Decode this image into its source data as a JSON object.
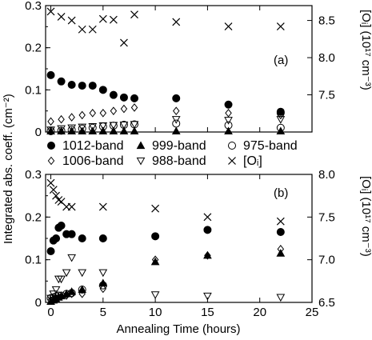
{
  "chart_data": [
    {
      "type": "scatter",
      "panel_label": "(a)",
      "ylabel_left": "Integrated abs. coeff. (cm⁻²)",
      "ylabel_right": "[Oᵢ] (10¹⁷ cm⁻³)",
      "ylim": [
        0,
        0.3
      ],
      "ylim_right": [
        7.0,
        8.7
      ],
      "yticks": [
        "0",
        "0.1",
        "0.2",
        "0.3"
      ],
      "yticks_right": [
        "7.5",
        "8.0",
        "8.5"
      ],
      "series": [
        {
          "name": "1012-band",
          "marker": "filled-circle",
          "axis": "left",
          "x": [
            0,
            1,
            2,
            3,
            4,
            5,
            6,
            7,
            8,
            12,
            17,
            22
          ],
          "y": [
            0.135,
            0.12,
            0.112,
            0.11,
            0.11,
            0.1,
            0.088,
            0.082,
            0.08,
            0.08,
            0.065,
            0.048
          ]
        },
        {
          "name": "999-band",
          "marker": "filled-triangle",
          "axis": "left",
          "x": [
            0,
            1,
            2,
            3,
            4,
            5,
            6,
            7,
            8,
            12,
            17,
            22
          ],
          "y": [
            0.002,
            0.002,
            0.002,
            0.002,
            0.002,
            0.002,
            0.002,
            0.002,
            0.002,
            0.002,
            0.002,
            0.002
          ]
        },
        {
          "name": "975-band",
          "marker": "open-circle",
          "axis": "left",
          "x": [
            0,
            1,
            2,
            3,
            4,
            5,
            6,
            7,
            8,
            12,
            17,
            22,
            22
          ],
          "y": [
            0.002,
            0.003,
            0.005,
            0.008,
            0.01,
            0.013,
            0.015,
            0.017,
            0.018,
            0.02,
            0.016,
            0.045,
            0.01
          ]
        },
        {
          "name": "1006-band",
          "marker": "open-diamond",
          "axis": "left",
          "x": [
            0,
            1,
            2,
            3,
            4,
            5,
            6,
            7,
            8,
            12,
            17,
            22
          ],
          "y": [
            0.025,
            0.03,
            0.035,
            0.04,
            0.045,
            0.045,
            0.05,
            0.055,
            0.058,
            0.05,
            0.045,
            0.04
          ]
        },
        {
          "name": "988-band",
          "marker": "open-triangle-down",
          "axis": "left",
          "x": [
            0,
            1,
            2,
            3,
            4,
            5,
            6,
            7,
            8,
            12,
            17,
            22
          ],
          "y": [
            0.005,
            0.008,
            0.01,
            0.012,
            0.013,
            0.015,
            0.016,
            0.017,
            0.018,
            0.03,
            0.028,
            0.03
          ]
        },
        {
          "name": "[Oᵢ]",
          "marker": "cross",
          "axis": "right",
          "x": [
            0,
            1,
            2,
            3,
            4,
            5,
            6,
            7,
            8,
            12,
            17,
            22
          ],
          "y": [
            8.62,
            8.55,
            8.5,
            8.38,
            8.38,
            8.52,
            8.51,
            8.2,
            8.58,
            8.48,
            8.42,
            8.42
          ]
        }
      ]
    },
    {
      "type": "scatter",
      "panel_label": "(b)",
      "xlabel": "Annealing Time (hours)",
      "ylabel_left": "Integrated abs. coeff. (cm⁻²)",
      "ylabel_right": "[Oᵢ] (10¹⁷ cm⁻³)",
      "xlim": [
        -0.5,
        25
      ],
      "xticks": [
        "0",
        "5",
        "10",
        "15",
        "20",
        "25"
      ],
      "ylim": [
        0,
        0.3
      ],
      "ylim_right": [
        6.5,
        8.0
      ],
      "yticks": [
        "0",
        "0.1",
        "0.2",
        "0.3"
      ],
      "yticks_right": [
        "6.5",
        "7.0",
        "7.5",
        "8.0"
      ],
      "series": [
        {
          "name": "1012-band",
          "marker": "filled-circle",
          "axis": "left",
          "x": [
            0,
            0.25,
            0.5,
            0.75,
            1,
            1.5,
            2,
            3,
            5,
            10,
            15,
            22
          ],
          "y": [
            0.12,
            0.145,
            0.15,
            0.175,
            0.18,
            0.16,
            0.16,
            0.15,
            0.15,
            0.155,
            0.17,
            0.165
          ]
        },
        {
          "name": "999-band",
          "marker": "filled-triangle",
          "axis": "left",
          "x": [
            0,
            0.25,
            0.5,
            0.75,
            1,
            1.5,
            2,
            3,
            5,
            10,
            15,
            22
          ],
          "y": [
            0.002,
            0.005,
            0.008,
            0.012,
            0.015,
            0.02,
            0.025,
            0.03,
            0.045,
            0.095,
            0.11,
            0.115
          ]
        },
        {
          "name": "975-band",
          "marker": "open-circle",
          "axis": "left",
          "x": [
            0,
            0.25,
            0.5,
            0.75,
            1,
            1.5,
            2,
            3,
            5
          ],
          "y": [
            0.01,
            0.012,
            0.014,
            0.016,
            0.016,
            0.02,
            0.022,
            0.03,
            0.04
          ]
        },
        {
          "name": "1006-band",
          "marker": "open-diamond",
          "axis": "left",
          "x": [
            0,
            0.25,
            0.5,
            0.75,
            1,
            1.5,
            2,
            3,
            5,
            10,
            15,
            22
          ],
          "y": [
            0.005,
            0.008,
            0.01,
            0.012,
            0.014,
            0.016,
            0.02,
            0.02,
            0.032,
            0.1,
            0.11,
            0.125
          ]
        },
        {
          "name": "988-band",
          "marker": "open-triangle-down",
          "axis": "left",
          "x": [
            0,
            0.25,
            0.5,
            0.75,
            1,
            1.5,
            2,
            3,
            5,
            10,
            15,
            22
          ],
          "y": [
            0.01,
            0.02,
            0.03,
            0.055,
            0.055,
            0.07,
            0.105,
            0.07,
            0.07,
            0.018,
            0.015,
            0.012
          ]
        },
        {
          "name": "[Oᵢ]",
          "marker": "cross",
          "axis": "right",
          "x": [
            0,
            0.25,
            0.5,
            0.75,
            1,
            1.5,
            2,
            5,
            10,
            15,
            22
          ],
          "y": [
            7.9,
            7.82,
            7.75,
            7.7,
            7.68,
            7.62,
            7.62,
            7.62,
            7.6,
            7.5,
            7.45
          ]
        }
      ]
    }
  ],
  "legend": {
    "items": [
      {
        "name": "1012-band",
        "marker": "filled-circle"
      },
      {
        "name": "999-band",
        "marker": "filled-triangle"
      },
      {
        "name": "975-band",
        "marker": "open-circle"
      },
      {
        "name": "1006-band",
        "marker": "open-diamond"
      },
      {
        "name": "988-band",
        "marker": "open-triangle-down"
      },
      {
        "name": "[Oᵢ]",
        "marker": "cross"
      }
    ]
  }
}
